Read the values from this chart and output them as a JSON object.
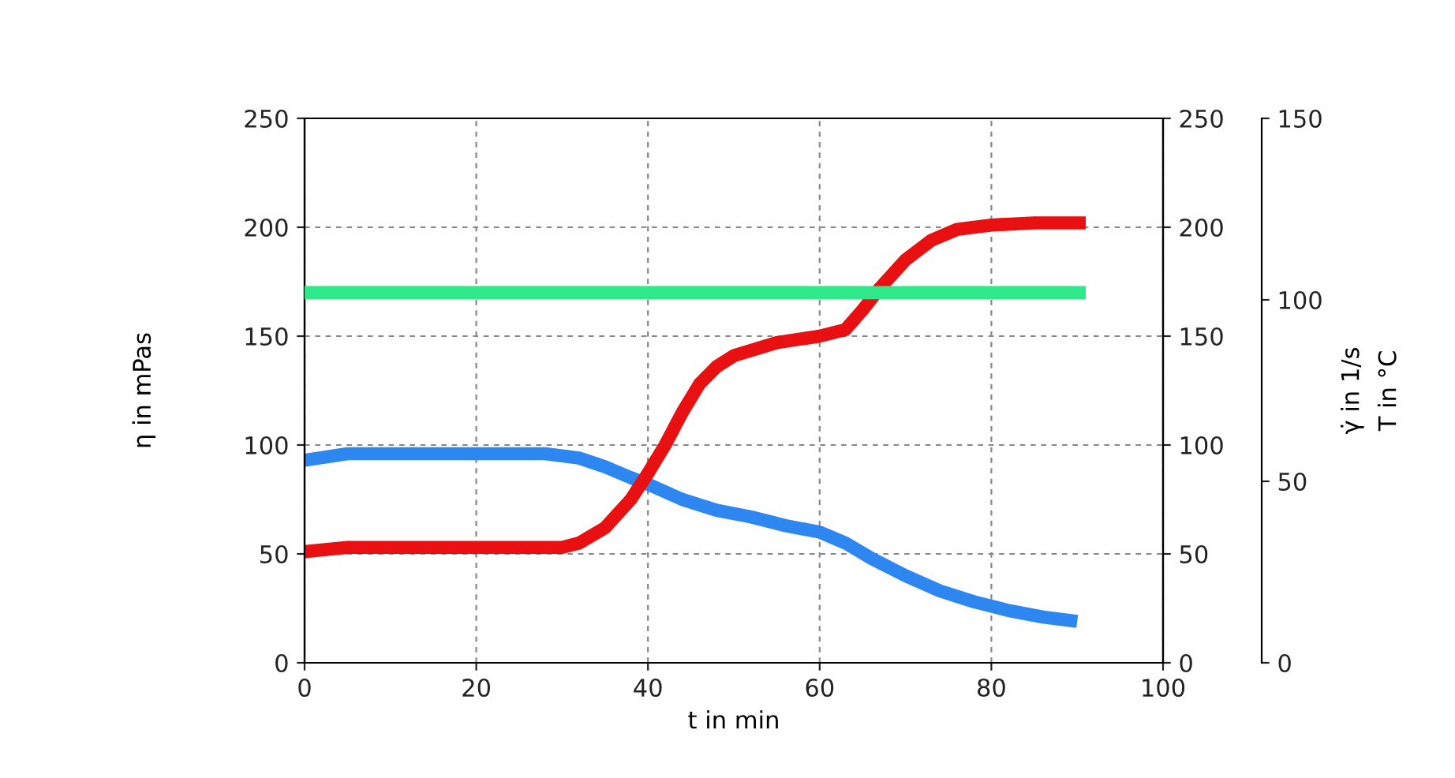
{
  "chart_data": {
    "type": "line",
    "xlabel": "t in min",
    "ylabel": "η in mPas",
    "y2label": "T in °C",
    "y3label": "γ̇ in 1/s",
    "xlim": [
      0,
      100
    ],
    "xticks": [
      0,
      20,
      40,
      60,
      80,
      100
    ],
    "ylim": [
      0,
      250
    ],
    "yticks": [
      0,
      50,
      100,
      150,
      200,
      250
    ],
    "y2lim": [
      0,
      250
    ],
    "y2ticks": [
      0,
      50,
      100,
      150,
      200,
      250
    ],
    "y3lim": [
      0,
      150
    ],
    "y3ticks": [
      0,
      50,
      100,
      150
    ],
    "grid": true,
    "legend": false,
    "line_style": "solid",
    "series": [
      {
        "color": "#2e86f0",
        "axis": "y",
        "x": [
          0,
          5,
          10,
          20,
          28,
          32,
          35,
          38,
          40,
          44,
          48,
          52,
          56,
          60,
          63,
          66,
          70,
          74,
          78,
          82,
          86,
          90
        ],
        "values": [
          93,
          96,
          96,
          96,
          96,
          94,
          90,
          85,
          82,
          75,
          70,
          67,
          63,
          60,
          55,
          48,
          40,
          33,
          28,
          24,
          21,
          19
        ]
      },
      {
        "color": "#e81010",
        "axis": "y2",
        "x": [
          0,
          5,
          10,
          20,
          30,
          32,
          35,
          38,
          40,
          42,
          44,
          46,
          48,
          50,
          55,
          60,
          63,
          65,
          67,
          70,
          73,
          76,
          80,
          85,
          91
        ],
        "values": [
          51,
          53,
          53,
          53,
          53,
          55,
          62,
          75,
          87,
          100,
          115,
          128,
          136,
          141,
          147,
          150,
          153,
          162,
          172,
          185,
          194,
          199,
          201,
          202,
          202
        ]
      },
      {
        "color": "#2ee88a",
        "axis": "y3",
        "x": [
          0,
          10,
          20,
          30,
          40,
          50,
          60,
          70,
          80,
          91
        ],
        "values": [
          102,
          102,
          102,
          102,
          102,
          102,
          102,
          102,
          102,
          102
        ]
      }
    ]
  }
}
